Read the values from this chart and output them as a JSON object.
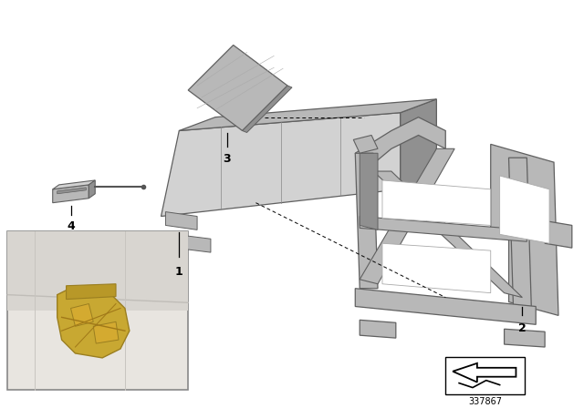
{
  "background_color": "#ffffff",
  "part_number": "337867",
  "fig_width": 6.4,
  "fig_height": 4.48,
  "dpi": 100,
  "gray_light": "#d2d2d2",
  "gray_mid": "#b8b8b8",
  "gray_dark": "#909090",
  "gray_edge": "#606060",
  "gold": "#c8a832",
  "gold_dark": "#9a7e20",
  "inset_bg": "#dcdad6",
  "inset_border": "#888888",
  "label_color": "#000000"
}
